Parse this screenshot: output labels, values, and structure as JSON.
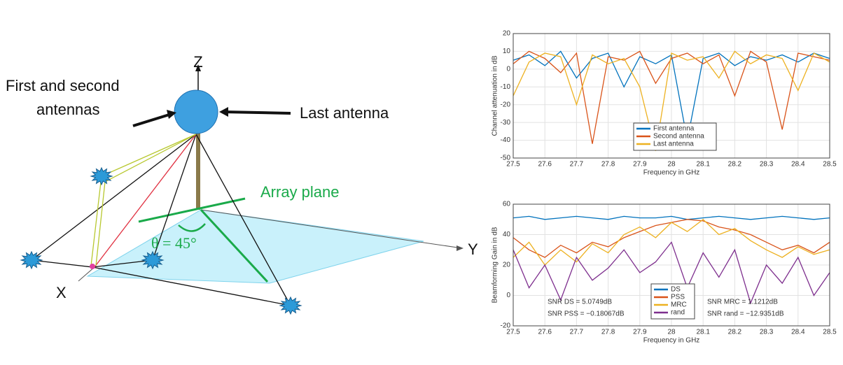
{
  "diagram": {
    "z_label": "Z",
    "first_label": [
      "First and second",
      "antennas"
    ],
    "last_label": "Last antenna",
    "plane_label": "Array plane",
    "angle_label": "θ = 45°",
    "y_label": "Y",
    "x_label": "X"
  },
  "chart_data": [
    {
      "type": "line",
      "ylabel": "Channel attenuation in dB",
      "xlabel": "Frequency in GHz",
      "x": [
        27.5,
        27.55,
        27.6,
        27.65,
        27.7,
        27.75,
        27.8,
        27.85,
        27.9,
        27.95,
        28,
        28.05,
        28.1,
        28.15,
        28.2,
        28.25,
        28.3,
        28.35,
        28.4,
        28.45,
        28.5
      ],
      "series": [
        {
          "name": "First antenna",
          "color": "#0072bd",
          "values": [
            5,
            8,
            2,
            10,
            -5,
            6,
            9,
            -10,
            7,
            3,
            8,
            -40,
            6,
            9,
            2,
            7,
            5,
            8,
            4,
            9,
            6
          ]
        },
        {
          "name": "Second antenna",
          "color": "#d95319",
          "values": [
            3,
            10,
            6,
            -2,
            9,
            -42,
            7,
            5,
            10,
            -8,
            6,
            9,
            3,
            8,
            -15,
            10,
            4,
            -34,
            9,
            7,
            5
          ]
        },
        {
          "name": "Last antenna",
          "color": "#edb120",
          "values": [
            -15,
            4,
            9,
            7,
            -20,
            8,
            3,
            6,
            -10,
            -46,
            9,
            5,
            7,
            -5,
            10,
            3,
            8,
            6,
            -12,
            9,
            4
          ]
        }
      ],
      "xlim": [
        27.5,
        28.5
      ],
      "xticks": [
        27.5,
        27.6,
        27.7,
        27.8,
        27.9,
        28,
        28.1,
        28.2,
        28.3,
        28.4,
        28.5
      ],
      "ylim": [
        -50,
        20
      ],
      "yticks": [
        -50,
        -40,
        -30,
        -20,
        -10,
        0,
        10,
        20
      ],
      "grid": true,
      "legend": "lower-center"
    },
    {
      "type": "line",
      "ylabel": "Beamforming Gain in dB",
      "xlabel": "Frequency in GHz",
      "x": [
        27.5,
        27.55,
        27.6,
        27.65,
        27.7,
        27.75,
        27.8,
        27.85,
        27.9,
        27.95,
        28,
        28.05,
        28.1,
        28.15,
        28.2,
        28.25,
        28.3,
        28.35,
        28.4,
        28.45,
        28.5
      ],
      "series": [
        {
          "name": "DS",
          "color": "#0072bd",
          "values": [
            51,
            52,
            50,
            51,
            52,
            51,
            50,
            52,
            51,
            51,
            52,
            50,
            51,
            52,
            51,
            50,
            51,
            52,
            51,
            50,
            51
          ]
        },
        {
          "name": "PSS",
          "color": "#d95319",
          "values": [
            38,
            30,
            25,
            33,
            28,
            35,
            32,
            38,
            42,
            46,
            48,
            50,
            49,
            45,
            43,
            40,
            35,
            30,
            33,
            28,
            35
          ]
        },
        {
          "name": "MRC",
          "color": "#edb120",
          "values": [
            25,
            35,
            20,
            30,
            22,
            34,
            28,
            40,
            45,
            38,
            48,
            42,
            50,
            40,
            44,
            36,
            30,
            25,
            32,
            27,
            30
          ]
        },
        {
          "name": "rand",
          "color": "#7e2f8e",
          "values": [
            30,
            5,
            20,
            -3,
            25,
            10,
            18,
            30,
            15,
            22,
            35,
            5,
            28,
            12,
            30,
            -5,
            20,
            8,
            25,
            0,
            15
          ]
        }
      ],
      "annotations": [
        "SNR DS = 5.0749dB",
        "SNR PSS = −0.18067dB",
        "SNR MRC = 1.1212dB",
        "SNR rand = −12.9351dB"
      ],
      "xlim": [
        27.5,
        28.5
      ],
      "xticks": [
        27.5,
        27.6,
        27.7,
        27.8,
        27.9,
        28,
        28.1,
        28.2,
        28.3,
        28.4,
        28.5
      ],
      "ylim": [
        -20,
        60
      ],
      "yticks": [
        -20,
        0,
        20,
        40,
        60
      ],
      "grid": true,
      "legend": "lower-center"
    }
  ]
}
